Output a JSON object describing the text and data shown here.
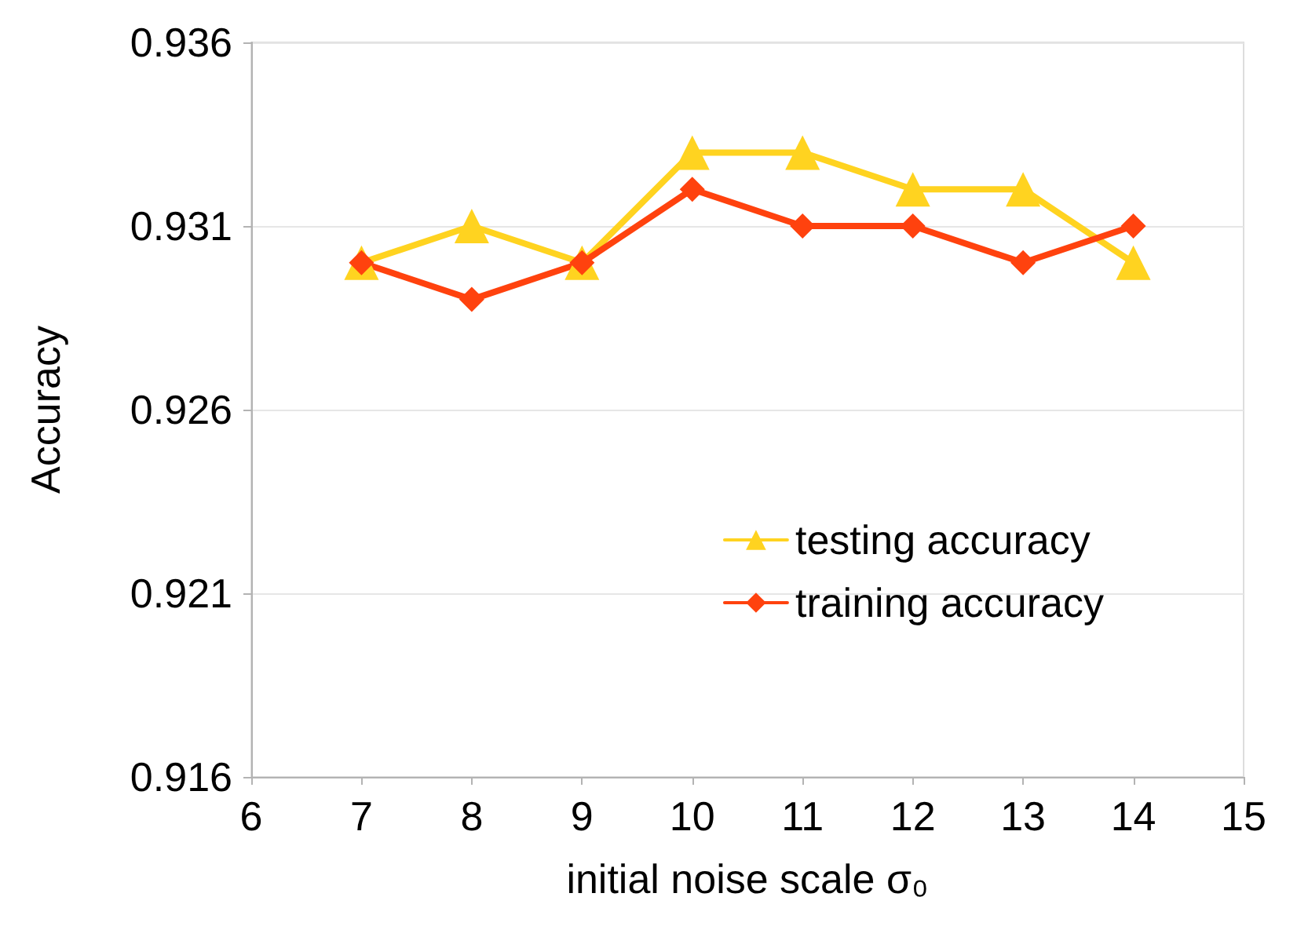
{
  "chart_data": {
    "type": "line",
    "xlabel": "initial noise scale σ₀",
    "ylabel": "Accuracy",
    "x": [
      7,
      8,
      9,
      10,
      11,
      12,
      13,
      14
    ],
    "series": [
      {
        "name": "testing accuracy",
        "color": "#ffd320",
        "marker": "triangle",
        "values": [
          0.93,
          0.931,
          0.93,
          0.933,
          0.933,
          0.932,
          0.932,
          0.93
        ]
      },
      {
        "name": "training accuracy",
        "color": "#ff420e",
        "marker": "diamond",
        "values": [
          0.93,
          0.929,
          0.93,
          0.932,
          0.931,
          0.931,
          0.93,
          0.931
        ]
      }
    ],
    "xlim": [
      6,
      15
    ],
    "xticks": [
      6,
      7,
      8,
      9,
      10,
      11,
      12,
      13,
      14,
      15
    ],
    "ylim": [
      0.916,
      0.936
    ],
    "yticks": [
      0.916,
      0.921,
      0.926,
      0.931,
      0.936
    ],
    "grid": "y",
    "legend": "right",
    "line_style": "solid"
  }
}
